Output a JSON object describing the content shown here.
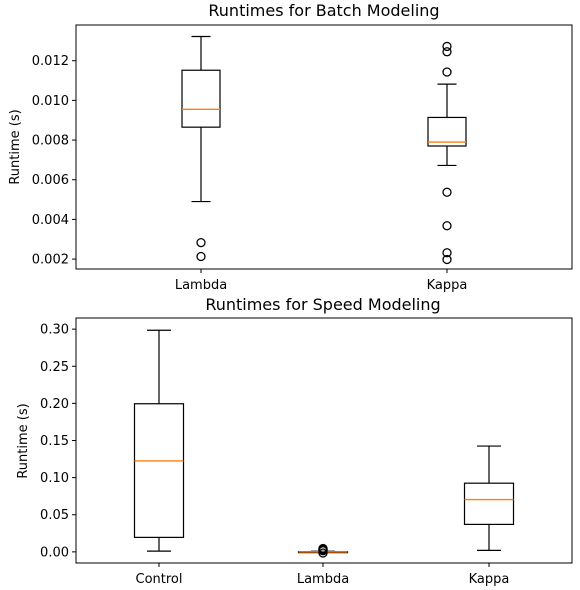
{
  "chart_data": [
    {
      "type": "boxplot",
      "title": "Runtimes for Batch Modeling",
      "xlabel": "",
      "ylabel": "Runtime (s)",
      "ylim": [
        0.0015,
        0.0138
      ],
      "yticks": [
        "0.002",
        "0.004",
        "0.006",
        "0.008",
        "0.010",
        "0.012"
      ],
      "ytick_values": [
        0.002,
        0.004,
        0.006,
        0.008,
        0.01,
        0.012
      ],
      "grid": false,
      "categories": [
        "Lambda",
        "Kappa"
      ],
      "boxes": [
        {
          "label": "Lambda",
          "whisker_low": 0.0049,
          "q1": 0.00865,
          "median": 0.00955,
          "q3": 0.01152,
          "whisker_high": 0.01322,
          "fliers": [
            0.00283,
            0.00213
          ]
        },
        {
          "label": "Kappa",
          "whisker_low": 0.00672,
          "q1": 0.0077,
          "median": 0.0079,
          "q3": 0.00914,
          "whisker_high": 0.01082,
          "fliers": [
            0.01272,
            0.01245,
            0.01143,
            0.00537,
            0.00368,
            0.00232,
            0.00198
          ]
        }
      ]
    },
    {
      "type": "boxplot",
      "title": "Runtimes for Speed Modeling",
      "xlabel": "",
      "ylabel": "Runtime (s)",
      "ylim": [
        -0.015,
        0.315
      ],
      "yticks": [
        "0.00",
        "0.05",
        "0.10",
        "0.15",
        "0.20",
        "0.25",
        "0.30"
      ],
      "ytick_values": [
        0.0,
        0.05,
        0.1,
        0.15,
        0.2,
        0.25,
        0.3
      ],
      "grid": false,
      "categories": [
        "Control",
        "Lambda",
        "Kappa"
      ],
      "boxes": [
        {
          "label": "Control",
          "whisker_low": 0.001,
          "q1": 0.0195,
          "median": 0.1225,
          "q3": 0.1995,
          "whisker_high": 0.2985,
          "fliers": []
        },
        {
          "label": "Lambda",
          "whisker_low": -0.0008,
          "q1": -0.0003,
          "median": 0.0,
          "q3": 0.0003,
          "whisker_high": 0.0008,
          "fliers": [
            0.0045,
            0.0038,
            0.003,
            0.0025,
            0.002,
            0.0015,
            -0.0015
          ]
        },
        {
          "label": "Kappa",
          "whisker_low": 0.002,
          "q1": 0.037,
          "median": 0.0705,
          "q3": 0.0925,
          "whisker_high": 0.1425,
          "fliers": []
        }
      ]
    }
  ]
}
